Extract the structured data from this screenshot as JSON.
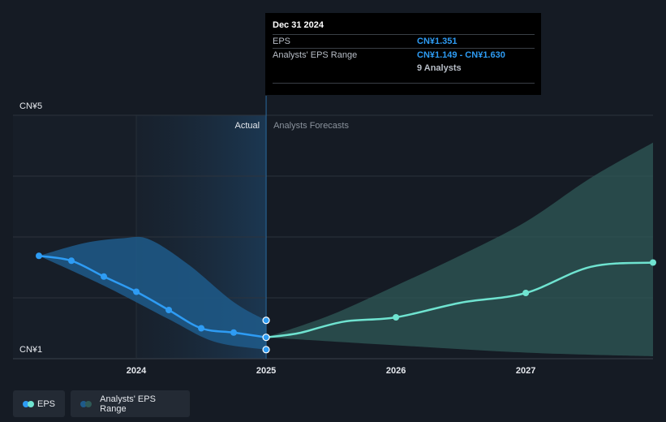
{
  "chart_data": {
    "type": "line",
    "y_axis": {
      "min": 1,
      "max": 5,
      "ticks": [
        {
          "value": 5,
          "label": "CN¥5"
        },
        {
          "value": 1,
          "label": "CN¥1"
        }
      ]
    },
    "x_axis": {
      "min": 2023.25,
      "max": 2027.98,
      "ticks": [
        {
          "value": 2024,
          "label": "2024"
        },
        {
          "value": 2025,
          "label": "2025"
        },
        {
          "value": 2026,
          "label": "2026"
        },
        {
          "value": 2027,
          "label": "2027"
        }
      ]
    },
    "grid": true,
    "divider_x": 2025,
    "section_labels": {
      "actual": "Actual",
      "forecast": "Analysts Forecasts"
    },
    "series": [
      {
        "name": "EPS",
        "color": "#2e9cf4",
        "points": [
          {
            "x": 2023.25,
            "y": 2.69
          },
          {
            "x": 2023.5,
            "y": 2.61
          },
          {
            "x": 2023.75,
            "y": 2.35
          },
          {
            "x": 2024.0,
            "y": 2.1
          },
          {
            "x": 2024.25,
            "y": 1.8
          },
          {
            "x": 2024.5,
            "y": 1.5
          },
          {
            "x": 2024.75,
            "y": 1.43
          },
          {
            "x": 2025.0,
            "y": 1.351
          }
        ]
      },
      {
        "name": "EPS forecast",
        "color": "#6fe3d0",
        "points": [
          {
            "x": 2025.0,
            "y": 1.351
          },
          {
            "x": 2025.25,
            "y": 1.42
          },
          {
            "x": 2025.6,
            "y": 1.61
          },
          {
            "x": 2026.0,
            "y": 1.68
          },
          {
            "x": 2026.5,
            "y": 1.92
          },
          {
            "x": 2027.0,
            "y": 2.08
          },
          {
            "x": 2027.5,
            "y": 2.51
          },
          {
            "x": 2027.98,
            "y": 2.58
          }
        ],
        "markers_at": [
          2026.0,
          2027.0,
          2027.98
        ]
      }
    ],
    "ranges": [
      {
        "name": "Analysts' EPS Range (past)",
        "color": "#1e5a8a",
        "upper": [
          {
            "x": 2023.25,
            "y": 2.69
          },
          {
            "x": 2023.6,
            "y": 2.9
          },
          {
            "x": 2023.9,
            "y": 2.98
          },
          {
            "x": 2024.1,
            "y": 2.96
          },
          {
            "x": 2024.4,
            "y": 2.55
          },
          {
            "x": 2024.75,
            "y": 1.93
          },
          {
            "x": 2025.0,
            "y": 1.63
          }
        ],
        "lower": [
          {
            "x": 2023.25,
            "y": 2.69
          },
          {
            "x": 2023.75,
            "y": 2.2
          },
          {
            "x": 2024.25,
            "y": 1.65
          },
          {
            "x": 2024.6,
            "y": 1.28
          },
          {
            "x": 2025.0,
            "y": 1.149
          }
        ]
      },
      {
        "name": "Analysts' EPS Range (forecast)",
        "color": "#2f5a57",
        "upper": [
          {
            "x": 2025.0,
            "y": 1.351
          },
          {
            "x": 2025.5,
            "y": 1.72
          },
          {
            "x": 2026.0,
            "y": 2.2
          },
          {
            "x": 2026.5,
            "y": 2.7
          },
          {
            "x": 2027.0,
            "y": 3.25
          },
          {
            "x": 2027.5,
            "y": 3.97
          },
          {
            "x": 2027.98,
            "y": 4.55
          }
        ],
        "lower": [
          {
            "x": 2025.0,
            "y": 1.351
          },
          {
            "x": 2026.0,
            "y": 1.22
          },
          {
            "x": 2027.0,
            "y": 1.1
          },
          {
            "x": 2027.98,
            "y": 1.04
          }
        ]
      }
    ],
    "highlight_markers": [
      {
        "x": 2025.0,
        "y": 1.63
      },
      {
        "x": 2025.0,
        "y": 1.351
      },
      {
        "x": 2025.0,
        "y": 1.149
      }
    ],
    "legend": [
      {
        "label": "EPS",
        "colors": [
          "#2e9cf4",
          "#6fe3d0"
        ]
      },
      {
        "label": "Analysts' EPS Range",
        "colors": [
          "#1e5a8a",
          "#2f5a57"
        ]
      }
    ]
  },
  "tooltip": {
    "date": "Dec 31 2024",
    "rows": [
      {
        "key": "EPS",
        "value": "CN¥1.351"
      },
      {
        "key": "Analysts' EPS Range",
        "value": "CN¥1.149 - CN¥1.630"
      }
    ],
    "analysts": "9 Analysts"
  }
}
